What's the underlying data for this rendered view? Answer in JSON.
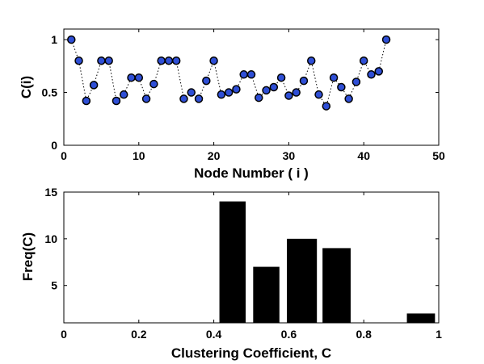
{
  "chart_data": [
    {
      "type": "scatter",
      "title": "",
      "xlabel": "Node Number ( i )",
      "ylabel": "C(i)",
      "xlim": [
        0,
        50
      ],
      "ylim": [
        0,
        1.1
      ],
      "xticks": [
        "0",
        "10",
        "20",
        "30",
        "40",
        "50"
      ],
      "yticks": [
        "0",
        "0.5",
        "1"
      ],
      "line_style": "dotted",
      "marker_color": "#2f4fd6",
      "x": [
        1,
        2,
        3,
        4,
        5,
        6,
        7,
        8,
        9,
        10,
        11,
        12,
        13,
        14,
        15,
        16,
        17,
        18,
        19,
        20,
        21,
        22,
        23,
        24,
        25,
        26,
        27,
        28,
        29,
        30,
        31,
        32,
        33,
        34,
        35,
        36,
        37,
        38,
        39,
        40,
        41,
        42,
        43
      ],
      "y": [
        1.0,
        0.8,
        0.42,
        0.57,
        0.8,
        0.8,
        0.42,
        0.48,
        0.64,
        0.64,
        0.44,
        0.58,
        0.8,
        0.8,
        0.8,
        0.44,
        0.5,
        0.44,
        0.61,
        0.8,
        0.48,
        0.5,
        0.53,
        0.67,
        0.67,
        0.45,
        0.52,
        0.55,
        0.64,
        0.47,
        0.5,
        0.61,
        0.8,
        0.48,
        0.37,
        0.64,
        0.55,
        0.44,
        0.6,
        0.8,
        0.67,
        0.7,
        1.0
      ]
    },
    {
      "type": "bar",
      "title": "",
      "xlabel": "Clustering Coefficient,  C",
      "ylabel": "Freq(C)",
      "xlim": [
        0,
        1
      ],
      "ylim": [
        1,
        15
      ],
      "xticks": [
        "0",
        "0.2",
        "0.4",
        "0.6",
        "0.8",
        "1"
      ],
      "yticks": [
        "5",
        "10",
        "15"
      ],
      "bar_color": "#000000",
      "bars": [
        {
          "x_start": 0.415,
          "x_end": 0.485,
          "value": 14
        },
        {
          "x_start": 0.505,
          "x_end": 0.575,
          "value": 7
        },
        {
          "x_start": 0.595,
          "x_end": 0.675,
          "value": 10
        },
        {
          "x_start": 0.69,
          "x_end": 0.765,
          "value": 9
        },
        {
          "x_start": 0.915,
          "x_end": 0.99,
          "value": 2
        }
      ]
    }
  ]
}
